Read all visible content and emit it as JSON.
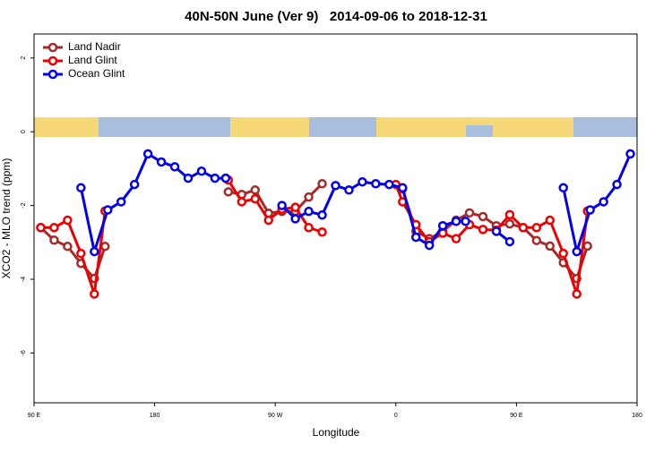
{
  "chart_data": {
    "type": "line",
    "title": "40N-50N June (Ver 9)   2014-09-06 to 2018-12-31",
    "x_label": "Longitude",
    "y_label": "XCO2 - MLO trend (ppm)",
    "xlim": [
      90,
      540
    ],
    "xticks": [
      {
        "value": 90,
        "label": "90 E"
      },
      180,
      {
        "value": 270,
        "label": "90 W"
      },
      {
        "value": 360,
        "label": "0"
      },
      {
        "value": 450,
        "label": "90 E"
      },
      {
        "value": 540,
        "label": "180"
      }
    ],
    "ylim": [
      -7.35,
      2.65
    ],
    "yticks": [
      -6,
      -4,
      -2,
      0,
      2
    ],
    "legend": "top-left",
    "series": [
      {
        "name": "Land Nadir",
        "color": "#a52a2a",
        "x": [
          95,
          105,
          115,
          125,
          135,
          143,
          null,
          235,
          245,
          255,
          265,
          275,
          285,
          295,
          305,
          null,
          365,
          375,
          385,
          395,
          405,
          415,
          425,
          435,
          445,
          455,
          465,
          475,
          485,
          495,
          503
        ],
        "values": [
          -2.6,
          -2.94,
          -3.11,
          -3.57,
          -3.98,
          -3.11,
          null,
          -1.63,
          -1.7,
          -1.58,
          -2.21,
          -2.16,
          -2.16,
          -1.77,
          -1.41,
          null,
          -1.55,
          -2.7,
          -2.9,
          -2.7,
          -2.4,
          -2.2,
          -2.3,
          -2.55,
          -2.5,
          -2.6,
          -2.95,
          -3.1,
          -3.55,
          -3.98,
          -3.1
        ]
      },
      {
        "name": "Land Glint",
        "color": "#ee0000",
        "x": [
          95,
          105,
          115,
          125,
          135,
          143,
          null,
          235,
          245,
          255,
          265,
          275,
          285,
          295,
          305,
          null,
          360,
          365,
          375,
          385,
          395,
          405,
          415,
          425,
          435,
          445,
          455,
          465,
          475,
          485,
          495,
          503
        ],
        "values": [
          -2.6,
          -2.6,
          -2.4,
          -3.3,
          -4.4,
          -2.15,
          null,
          -1.31,
          -1.9,
          -1.82,
          -2.4,
          -2.1,
          -2.05,
          -2.6,
          -2.72,
          null,
          -1.43,
          -1.9,
          -2.52,
          -2.98,
          -2.75,
          -2.9,
          -2.52,
          -2.65,
          -2.67,
          -2.25,
          -2.6,
          -2.6,
          -2.4,
          -3.3,
          -4.4,
          -2.15
        ]
      },
      {
        "name": "Ocean Glint",
        "color": "#0000ee",
        "x": [
          125,
          135,
          145,
          155,
          165,
          175,
          185,
          195,
          205,
          215,
          225,
          233,
          null,
          275,
          285,
          295,
          305,
          315,
          325,
          335,
          345,
          355,
          365,
          375,
          385,
          395,
          405,
          412,
          null,
          435,
          445,
          null,
          485,
          495,
          505,
          515,
          525,
          535
        ],
        "values": [
          -1.52,
          -3.25,
          -2.12,
          -1.9,
          -1.43,
          -0.6,
          -0.82,
          -0.95,
          -1.26,
          -1.07,
          -1.26,
          -1.26,
          null,
          -2.0,
          -2.36,
          -2.16,
          -2.26,
          -1.46,
          -1.58,
          -1.36,
          -1.41,
          -1.43,
          -1.52,
          -2.86,
          -3.08,
          -2.55,
          -2.43,
          -2.43,
          null,
          -2.7,
          -2.98,
          null,
          -1.52,
          -3.25,
          -2.12,
          -1.9,
          -1.43,
          -0.6
        ]
      }
    ]
  }
}
